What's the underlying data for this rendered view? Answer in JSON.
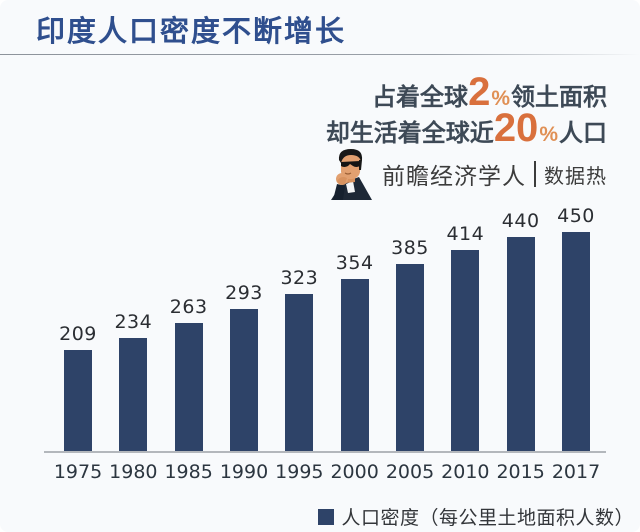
{
  "header": {
    "title": "印度人口密度不断增长"
  },
  "callout": {
    "line1": {
      "prefix": "占着全球",
      "big": "2",
      "percent": "%",
      "suffix": "领土面积"
    },
    "line2": {
      "prefix": "却生活着全球近",
      "big": "20",
      "percent": "%",
      "suffix": "人口"
    }
  },
  "brand": {
    "name": "前瞻经济学人",
    "divider": "|",
    "tag": "数据热",
    "avatar_icon": "man-with-sunglasses-thinking-icon"
  },
  "chart_data": {
    "type": "bar",
    "categories": [
      "1975",
      "1980",
      "1985",
      "1990",
      "1995",
      "2000",
      "2005",
      "2010",
      "2015",
      "2017"
    ],
    "values": [
      209,
      234,
      263,
      293,
      323,
      354,
      385,
      414,
      440,
      450
    ],
    "series_name": "人口密度",
    "legend_label": "人口密度（每公里土地面积人数）",
    "ylabel": "",
    "xlabel": "",
    "ylim": [
      0,
      460
    ],
    "grid": false,
    "legend_position": "bottom-right",
    "data_labels": true
  },
  "colors": {
    "bar": "#2e4368",
    "title_blue": "#2f4f8e",
    "accent_orange": "#d9703d",
    "percent_orange": "#e09055",
    "dark_text": "#3d4956",
    "background": "#f8fafc"
  }
}
